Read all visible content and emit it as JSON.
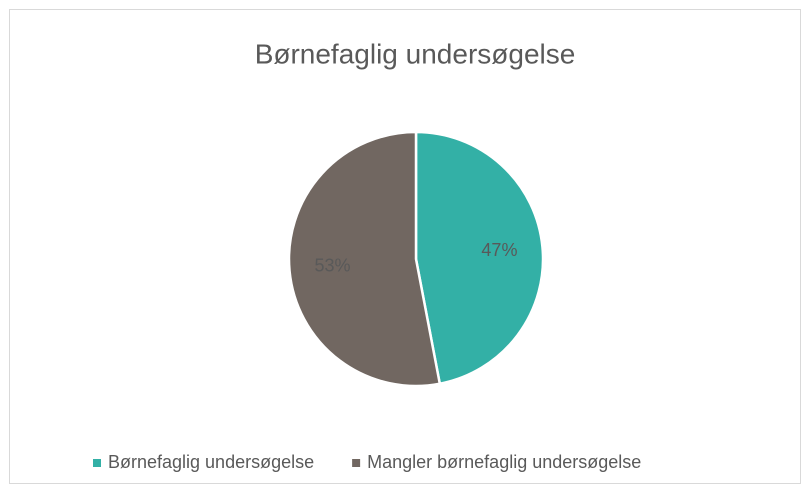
{
  "chart_data": {
    "type": "pie",
    "title": "Børnefaglig undersøgelse",
    "categories": [
      "Børnefaglig undersøgelse",
      "Mangler børnefaglig undersøgelse"
    ],
    "values": [
      47,
      53
    ],
    "value_labels": [
      "47%",
      "53%"
    ],
    "colors": [
      "#33b0a6",
      "#716761"
    ],
    "legend": "bottom"
  }
}
